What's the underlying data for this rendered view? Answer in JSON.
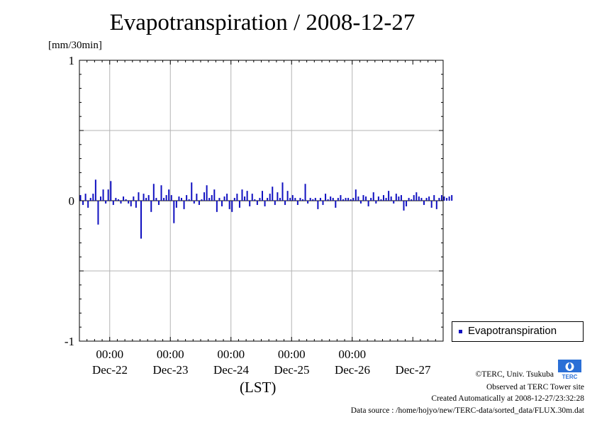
{
  "colors": {
    "series": "#1010c0",
    "grid": "#b4b4b4",
    "axis": "#000000"
  },
  "header": {
    "title": "Evapotranspiration / 2008-12-27",
    "unit": "[mm/30min]"
  },
  "axes": {
    "y_ticks": [
      "1",
      "0",
      "-1"
    ],
    "x_time_ticks": [
      "00:00",
      "00:00",
      "00:00",
      "00:00",
      "00:00"
    ],
    "x_day_labels": [
      "Dec-22",
      "Dec-23",
      "Dec-24",
      "Dec-25",
      "Dec-26",
      "Dec-27"
    ],
    "x_title": "(LST)"
  },
  "legend": {
    "label": "Evapotranspiration",
    "placement": "right"
  },
  "credits": {
    "line1": "©TERC, Univ. Tsukuba",
    "line2": "Observed at TERC Tower site",
    "line3": "Created Automatically at 2008-12-27/23:32:28",
    "line4": "Data source : /home/hojyo/new/TERC-data/sorted_data/FLUX.30m.dat",
    "logo_text": "TERC"
  },
  "chart_data": {
    "type": "bar",
    "title": "Evapotranspiration / 2008-12-27",
    "ylabel": "[mm/30min]",
    "xlabel": "(LST)",
    "ylim": [
      -1,
      1
    ],
    "xlim_hours": [
      -12,
      132
    ],
    "x_unit": "hours from 2008-12-22 00:00 LST",
    "grid": true,
    "series": [
      {
        "name": "Evapotranspiration",
        "x_start_hours": -12,
        "x_step_hours": 1,
        "values": [
          0.04,
          -0.03,
          0.05,
          -0.05,
          0.02,
          0.05,
          0.15,
          -0.17,
          0.03,
          0.08,
          -0.02,
          0.08,
          0.14,
          -0.03,
          0.02,
          0.01,
          -0.02,
          0.03,
          0.01,
          -0.02,
          -0.04,
          0.03,
          -0.05,
          0.06,
          -0.27,
          0.05,
          0.02,
          0.04,
          -0.08,
          0.12,
          0.02,
          -0.03,
          0.11,
          0.02,
          0.04,
          0.08,
          0.04,
          -0.16,
          -0.05,
          0.03,
          0.02,
          -0.06,
          0.04,
          0.01,
          0.13,
          -0.02,
          0.05,
          -0.03,
          0.01,
          0.06,
          0.11,
          0.02,
          0.04,
          0.08,
          -0.08,
          0.02,
          -0.04,
          0.03,
          0.05,
          -0.06,
          -0.08,
          0.02,
          0.05,
          -0.05,
          0.08,
          0.03,
          0.07,
          -0.04,
          0.05,
          0.01,
          -0.03,
          0.02,
          0.07,
          -0.04,
          0.02,
          0.05,
          0.1,
          -0.03,
          0.06,
          0.02,
          0.13,
          -0.03,
          0.07,
          0.02,
          0.04,
          0.02,
          -0.03,
          0.02,
          0.01,
          0.12,
          -0.02,
          0.02,
          0.01,
          0.02,
          -0.06,
          0.02,
          -0.03,
          0.05,
          0.01,
          0.03,
          0.02,
          -0.05,
          0.02,
          0.04,
          0.01,
          0.02,
          0.02,
          0.01,
          0.02,
          0.08,
          0.03,
          -0.02,
          0.04,
          0.03,
          -0.04,
          0.02,
          0.06,
          -0.02,
          0.03,
          0.01,
          0.04,
          0.02,
          0.07,
          0.03,
          -0.02,
          0.05,
          0.03,
          0.04,
          -0.07,
          -0.04,
          0.02,
          0.01,
          0.04,
          0.06,
          0.03,
          0.02,
          -0.03,
          0.02,
          0.03,
          -0.05,
          0.04,
          -0.06,
          0.02,
          0.04,
          0.03,
          0.02,
          0.03,
          0.04
        ]
      }
    ]
  }
}
